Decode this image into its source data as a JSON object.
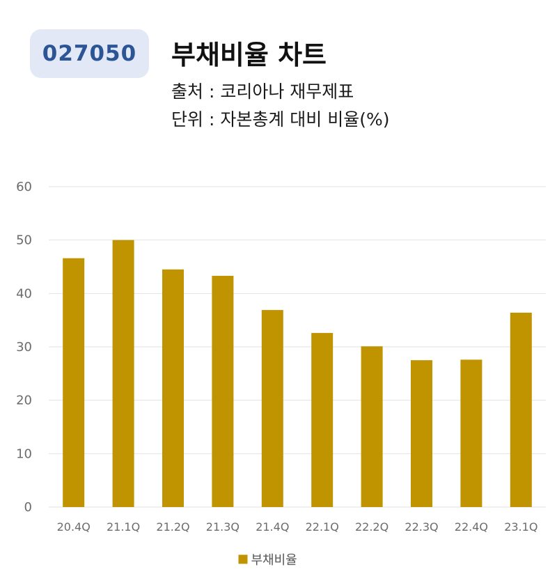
{
  "header": {
    "code": "027050",
    "title": "부채비율 차트",
    "source": "출처 : 코리아나 재무제표",
    "unit": "단위 : 자본총계 대비 비율(%)"
  },
  "colors": {
    "bar": "#c09300",
    "badge_bg": "#e2e8f6",
    "badge_text": "#2c5596",
    "grid": "#e2e2e2"
  },
  "chart_data": {
    "type": "bar",
    "categories": [
      "20.4Q",
      "21.1Q",
      "21.2Q",
      "21.3Q",
      "21.4Q",
      "22.1Q",
      "22.2Q",
      "22.3Q",
      "22.4Q",
      "23.1Q"
    ],
    "series": [
      {
        "name": "부채비율",
        "values": [
          46.6,
          50.0,
          44.5,
          43.3,
          36.9,
          32.6,
          30.1,
          27.5,
          27.6,
          36.4
        ]
      }
    ],
    "ylim": [
      0,
      60
    ],
    "yticks": [
      0,
      10,
      20,
      30,
      40,
      50,
      60
    ],
    "grid": true,
    "legend_position": "bottom"
  }
}
